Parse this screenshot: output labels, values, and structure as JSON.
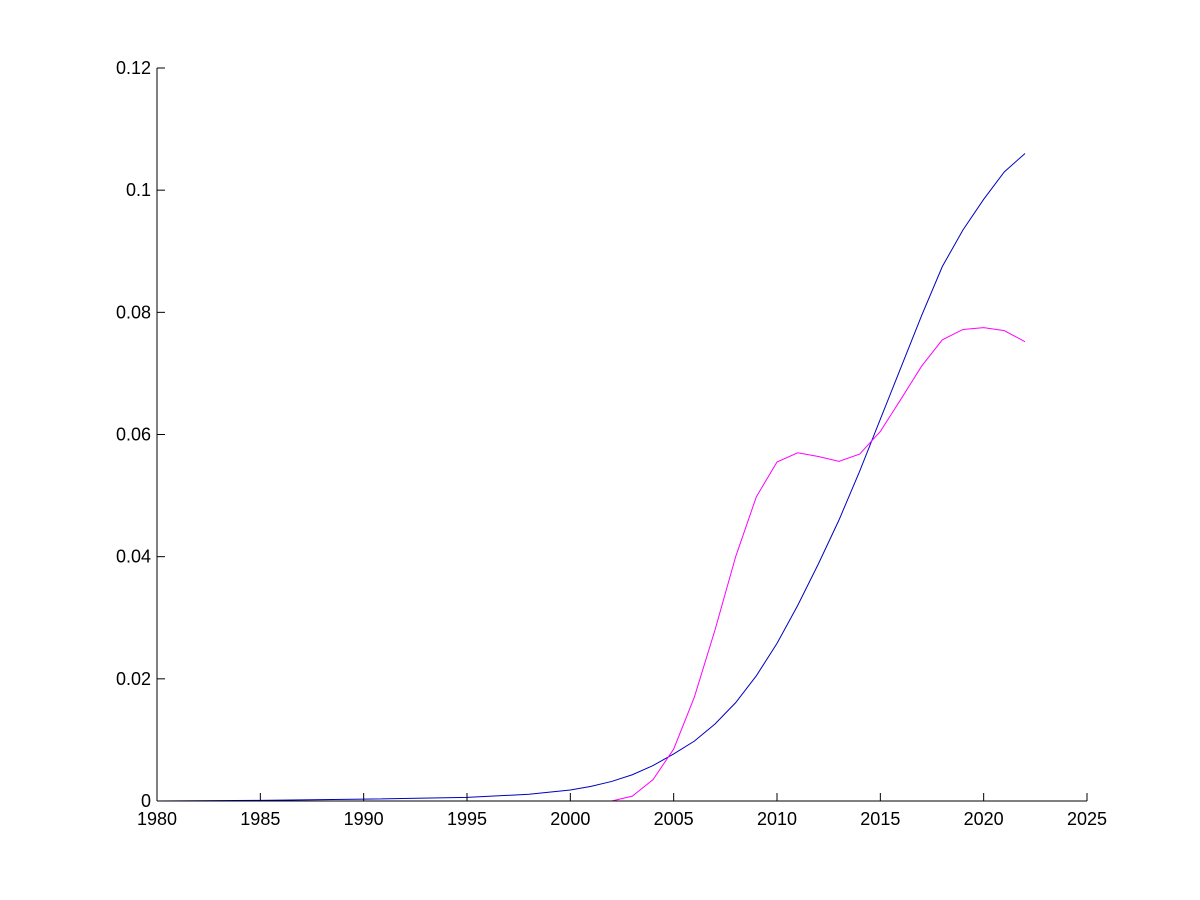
{
  "chart_data": {
    "type": "line",
    "title": "",
    "xlabel": "",
    "ylabel": "",
    "xlim": [
      1980,
      2025
    ],
    "ylim": [
      0,
      0.12
    ],
    "xticks": [
      1980,
      1985,
      1990,
      1995,
      2000,
      2005,
      2010,
      2015,
      2020,
      2025
    ],
    "xtick_labels": [
      "1980",
      "1985",
      "1990",
      "1995",
      "2000",
      "2005",
      "2010",
      "2015",
      "2020",
      "2025"
    ],
    "yticks": [
      0,
      0.02,
      0.04,
      0.06,
      0.08,
      0.1,
      0.12
    ],
    "ytick_labels": [
      "0",
      "0.02",
      "0.04",
      "0.06",
      "0.08",
      "0.1",
      "0.12"
    ],
    "grid": false,
    "legend": "none",
    "series": [
      {
        "color": "#0000c0",
        "x": [
          1980,
          1985,
          1990,
          1995,
          1998,
          2000,
          2001,
          2002,
          2003,
          2004,
          2005,
          2006,
          2007,
          2008,
          2009,
          2010,
          2011,
          2012,
          2013,
          2014,
          2015,
          2016,
          2017,
          2018,
          2019,
          2020,
          2021,
          2022
        ],
        "y": [
          0,
          0.0001,
          0.0003,
          0.0006,
          0.0011,
          0.0018,
          0.0024,
          0.0032,
          0.0043,
          0.0058,
          0.0077,
          0.0098,
          0.0126,
          0.0161,
          0.0205,
          0.0258,
          0.032,
          0.0388,
          0.046,
          0.054,
          0.0625,
          0.071,
          0.0795,
          0.0875,
          0.0935,
          0.0985,
          0.103,
          0.106
        ]
      },
      {
        "color": "#ff00ff",
        "x": [
          1980,
          1985,
          1990,
          1995,
          2000,
          2002,
          2003,
          2004,
          2005,
          2006,
          2007,
          2008,
          2009,
          2010,
          2011,
          2012,
          2013,
          2014,
          2015,
          2016,
          2017,
          2018,
          2019,
          2020,
          2021,
          2022
        ],
        "y": [
          0,
          0,
          0,
          0,
          0,
          0,
          0.0008,
          0.0035,
          0.0085,
          0.017,
          0.028,
          0.04,
          0.0498,
          0.0555,
          0.057,
          0.0564,
          0.0556,
          0.0568,
          0.0605,
          0.0658,
          0.0712,
          0.0755,
          0.0772,
          0.0775,
          0.077,
          0.0752
        ]
      }
    ]
  }
}
